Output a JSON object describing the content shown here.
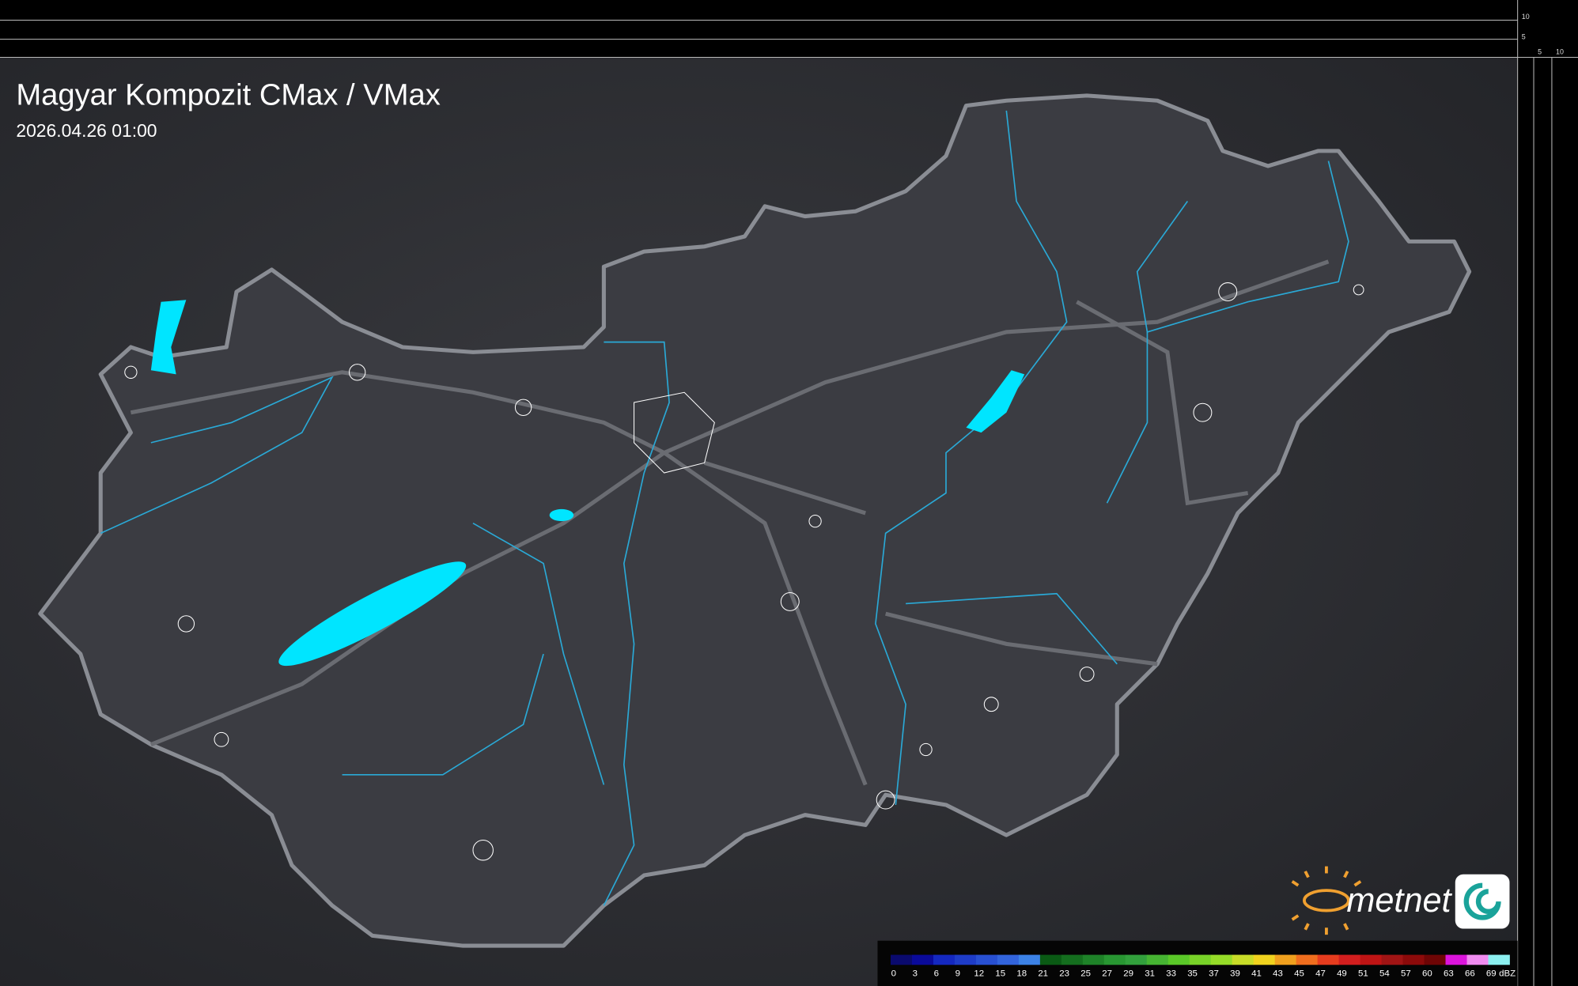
{
  "header": {
    "title": "Magyar Kompozit CMax / VMax",
    "timestamp": "2026.04.26 01:00"
  },
  "side_scale": {
    "top_labels": [
      "10",
      "5"
    ],
    "right_labels": [
      "5",
      "10"
    ]
  },
  "logo": {
    "text": "metnet"
  },
  "colorbar": {
    "ticks": [
      0,
      3,
      6,
      9,
      12,
      15,
      18,
      21,
      23,
      25,
      27,
      29,
      31,
      33,
      35,
      37,
      39,
      41,
      43,
      45,
      47,
      49,
      51,
      54,
      57,
      60,
      63,
      66,
      69
    ],
    "unit": "dBZ",
    "colors": [
      "#0a0a6e",
      "#0a0a9a",
      "#1428c0",
      "#1e3cc8",
      "#2850d2",
      "#3264dc",
      "#3c82e6",
      "#0a5a14",
      "#146e1e",
      "#1e8228",
      "#289632",
      "#32a03c",
      "#46b432",
      "#5ac828",
      "#78d228",
      "#96dc28",
      "#c8dc28",
      "#f0d21e",
      "#f0a01e",
      "#f06e1e",
      "#e63c1e",
      "#d21e1e",
      "#be1414",
      "#a01414",
      "#8c0a0a",
      "#6e0505",
      "#dc14dc",
      "#f08cf0",
      "#8cf0f0"
    ]
  }
}
